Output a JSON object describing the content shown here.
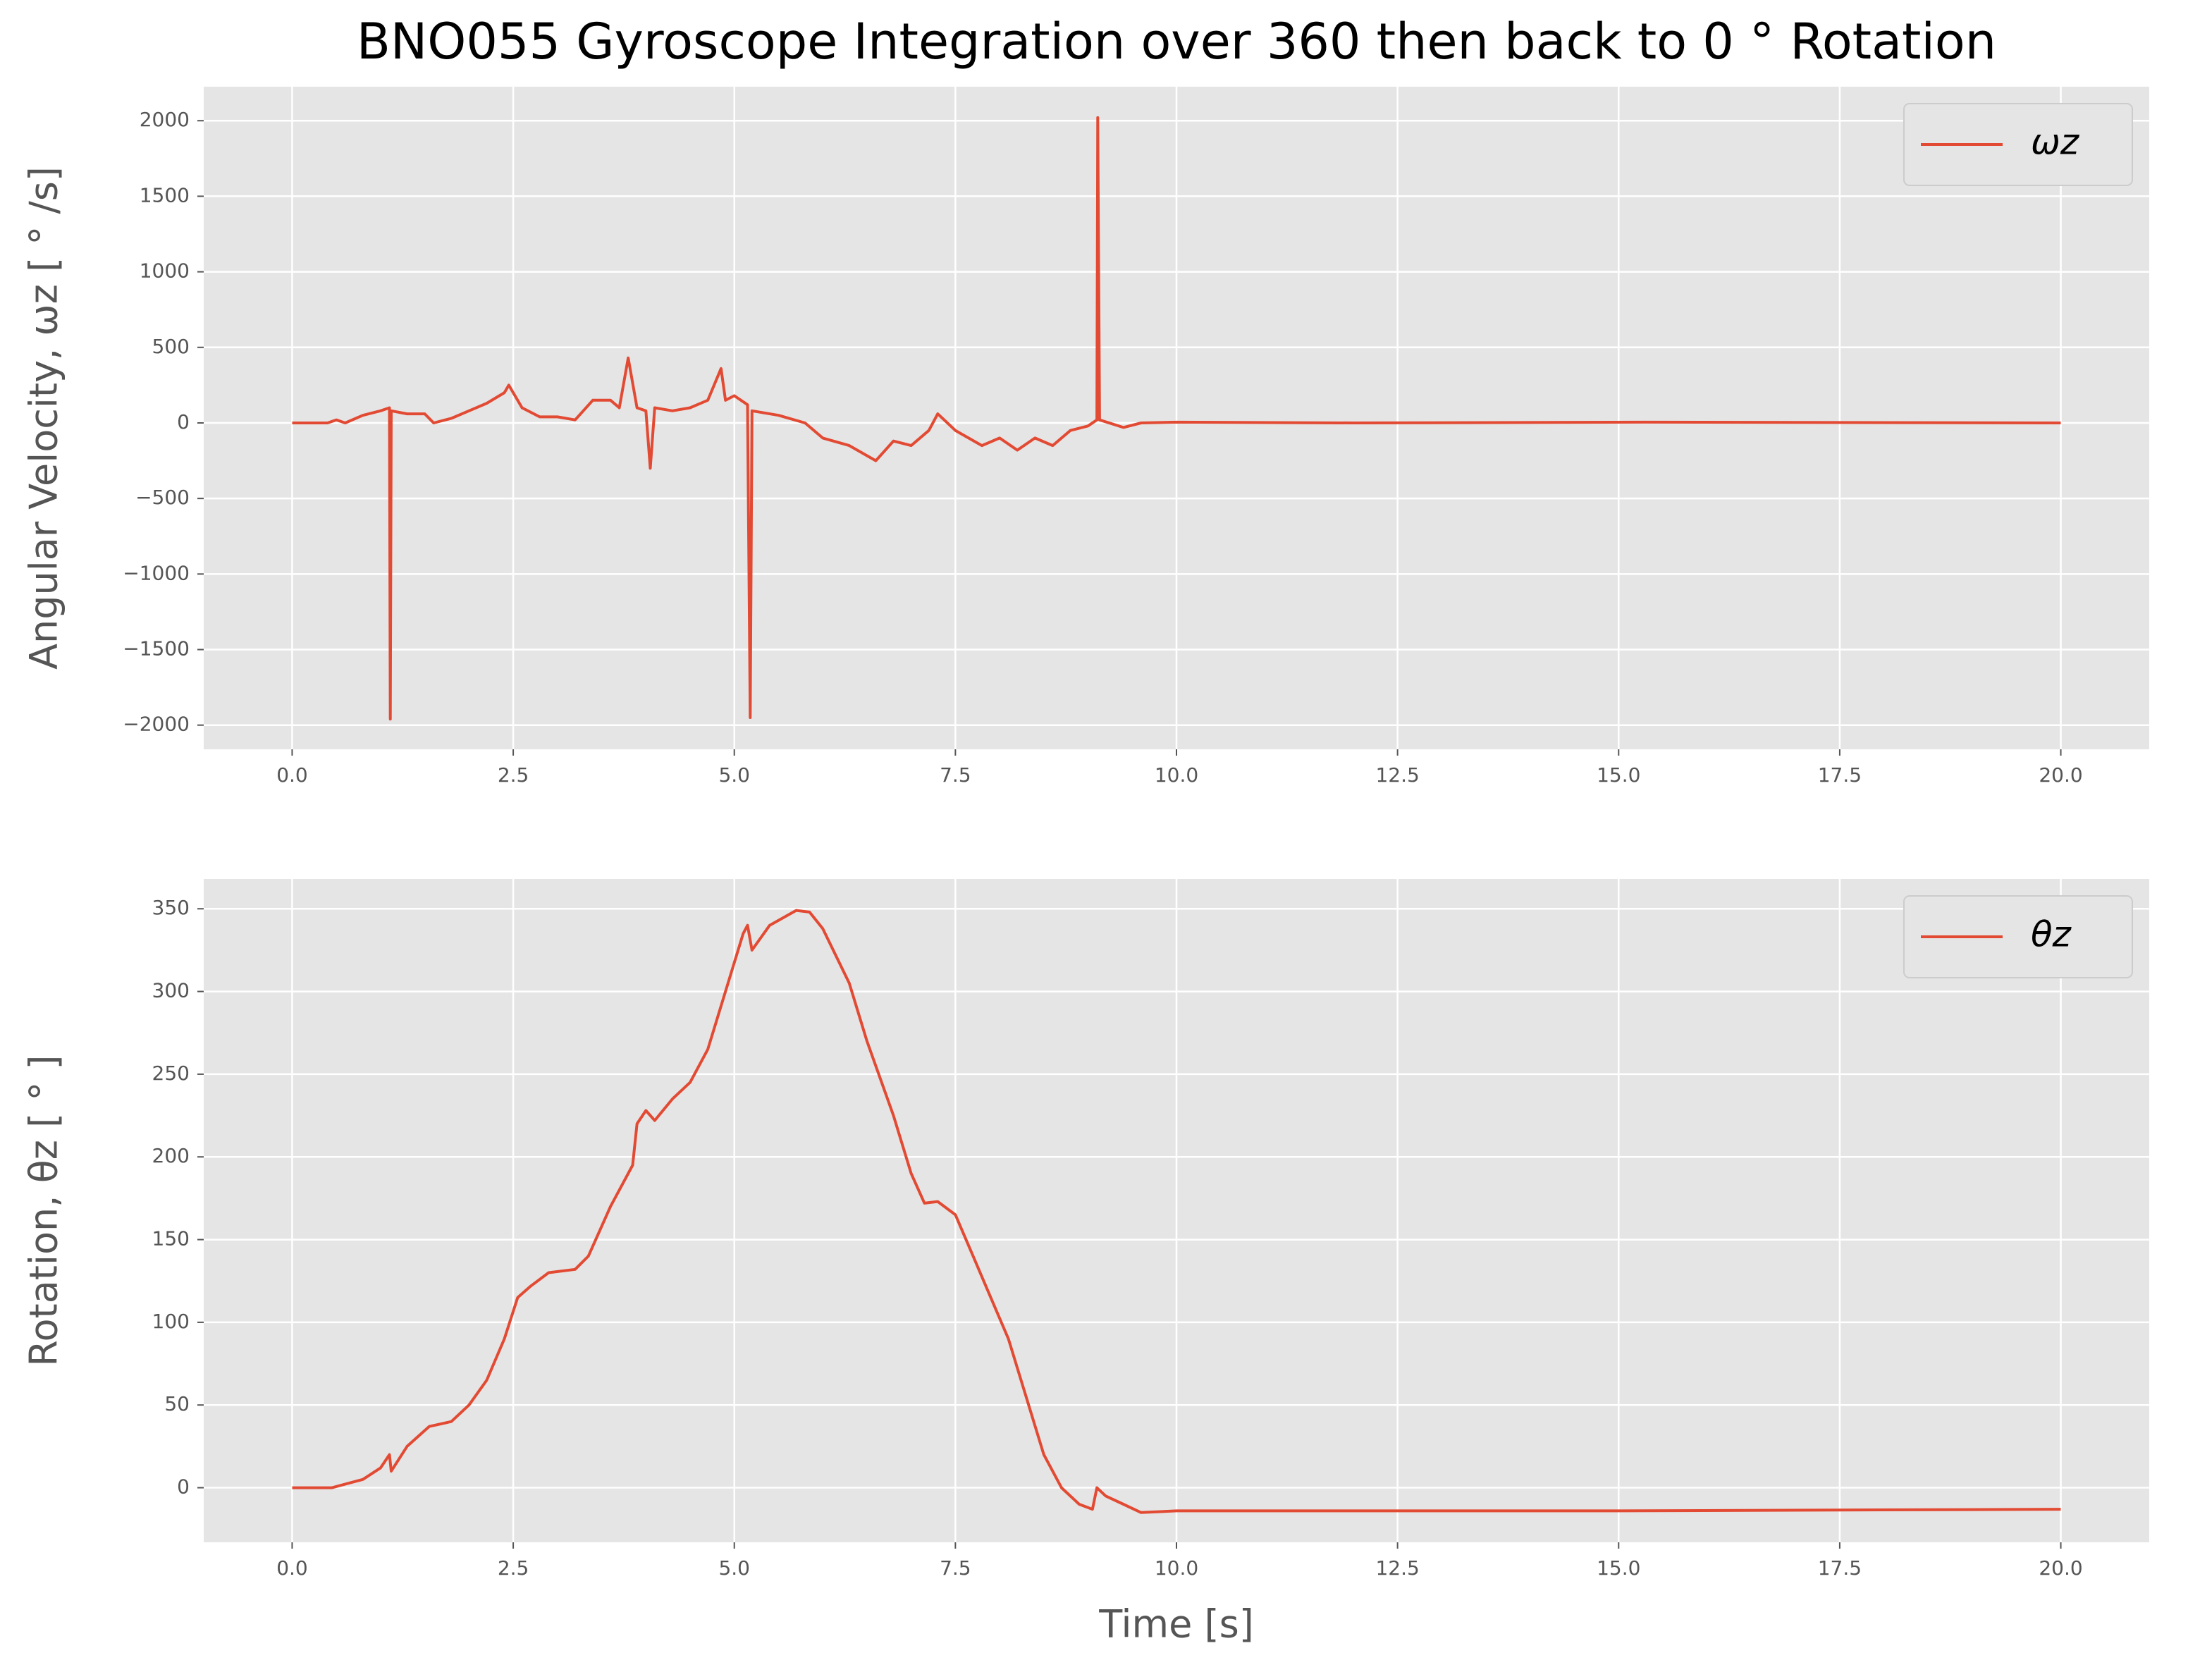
{
  "chart_data": [
    {
      "type": "line",
      "title": "BNO055 Gyroscope Integration over 360 then back to 0 ° Rotation",
      "y_label": "Angular Velocity, ωz [ ° /s]",
      "x": [
        0,
        0.4,
        0.5,
        0.6,
        0.8,
        1.0,
        1.1,
        1.11,
        1.12,
        1.3,
        1.5,
        1.6,
        1.8,
        2.0,
        2.2,
        2.4,
        2.45,
        2.6,
        2.8,
        3.0,
        3.2,
        3.4,
        3.6,
        3.7,
        3.8,
        3.9,
        4.0,
        4.05,
        4.1,
        4.3,
        4.5,
        4.7,
        4.85,
        4.9,
        5.0,
        5.15,
        5.18,
        5.2,
        5.5,
        5.8,
        6.0,
        6.3,
        6.6,
        6.8,
        7.0,
        7.2,
        7.3,
        7.5,
        7.8,
        8.0,
        8.2,
        8.4,
        8.6,
        8.8,
        9.0,
        9.1,
        9.11,
        9.13,
        9.4,
        9.6,
        10.0,
        12.0,
        15.3,
        20.0
      ],
      "series": [
        {
          "name": "ωz",
          "color": "#e24a33",
          "values": [
            0,
            0,
            20,
            0,
            50,
            80,
            100,
            -1960,
            80,
            60,
            60,
            0,
            30,
            80,
            130,
            200,
            250,
            100,
            40,
            40,
            20,
            150,
            150,
            100,
            430,
            100,
            80,
            -300,
            100,
            80,
            100,
            150,
            360,
            150,
            180,
            120,
            -1950,
            80,
            50,
            0,
            -100,
            -150,
            -250,
            -120,
            -150,
            -50,
            60,
            -50,
            -150,
            -100,
            -180,
            -100,
            -150,
            -50,
            -20,
            20,
            2020,
            20,
            -30,
            0,
            5,
            0,
            5,
            0
          ]
        }
      ],
      "xlim": [
        -1,
        21
      ],
      "xticks": [
        {
          "value": 0,
          "label": "0.0"
        },
        {
          "value": 2.5,
          "label": "2.5"
        },
        {
          "value": 5,
          "label": "5.0"
        },
        {
          "value": 7.5,
          "label": "7.5"
        },
        {
          "value": 10,
          "label": "10.0"
        },
        {
          "value": 12.5,
          "label": "12.5"
        },
        {
          "value": 15,
          "label": "15.0"
        },
        {
          "value": 17.5,
          "label": "17.5"
        },
        {
          "value": 20,
          "label": "20.0"
        }
      ],
      "ylim": [
        -2160,
        2225
      ],
      "yticks": [
        {
          "value": -2000,
          "label": "−2000"
        },
        {
          "value": -1500,
          "label": "−1500"
        },
        {
          "value": -1000,
          "label": "−1000"
        },
        {
          "value": -500,
          "label": "−500"
        },
        0,
        500,
        1000,
        1500,
        2000
      ],
      "grid": true,
      "legend": "upper right"
    },
    {
      "type": "line",
      "y_label": "Rotation, θz [ ° ]",
      "x_label": "Time [s]",
      "x": [
        0,
        0.45,
        0.8,
        1.0,
        1.1,
        1.12,
        1.3,
        1.55,
        1.8,
        2.0,
        2.2,
        2.4,
        2.55,
        2.7,
        2.9,
        3.2,
        3.35,
        3.6,
        3.85,
        3.9,
        4.0,
        4.1,
        4.3,
        4.5,
        4.7,
        4.9,
        5.1,
        5.15,
        5.2,
        5.4,
        5.7,
        5.85,
        6.0,
        6.3,
        6.5,
        6.8,
        7.0,
        7.15,
        7.3,
        7.5,
        7.7,
        7.9,
        8.1,
        8.3,
        8.5,
        8.7,
        8.9,
        9.05,
        9.1,
        9.2,
        9.4,
        9.6,
        10.0,
        15.0,
        20.0
      ],
      "series": [
        {
          "name": "θz",
          "color": "#e24a33",
          "values": [
            0,
            0,
            5,
            12,
            20,
            10,
            25,
            37,
            40,
            50,
            65,
            90,
            115,
            122,
            130,
            132,
            140,
            170,
            195,
            220,
            228,
            222,
            235,
            245,
            265,
            300,
            335,
            340,
            325,
            340,
            349,
            348,
            338,
            305,
            270,
            225,
            190,
            172,
            173,
            165,
            140,
            115,
            90,
            55,
            20,
            0,
            -10,
            -13,
            0,
            -5,
            -10,
            -15,
            -14,
            -14,
            -13
          ]
        }
      ],
      "xlim": [
        -1,
        21
      ],
      "xticks": [
        {
          "value": 0,
          "label": "0.0"
        },
        {
          "value": 2.5,
          "label": "2.5"
        },
        {
          "value": 5,
          "label": "5.0"
        },
        {
          "value": 7.5,
          "label": "7.5"
        },
        {
          "value": 10,
          "label": "10.0"
        },
        {
          "value": 12.5,
          "label": "12.5"
        },
        {
          "value": 15,
          "label": "15.0"
        },
        {
          "value": 17.5,
          "label": "17.5"
        },
        {
          "value": 20,
          "label": "20.0"
        }
      ],
      "ylim": [
        -33,
        368
      ],
      "yticks": [
        0,
        50,
        100,
        150,
        200,
        250,
        300,
        350
      ],
      "grid": true,
      "legend": "upper right"
    }
  ]
}
